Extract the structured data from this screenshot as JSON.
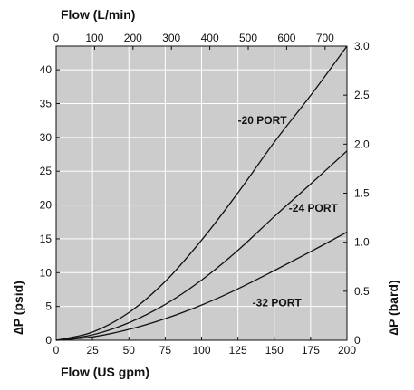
{
  "chart_data": {
    "type": "line",
    "title": "",
    "top_axis": {
      "label": "Flow (L/min)",
      "ticks": [
        0,
        100,
        200,
        300,
        400,
        500,
        600,
        700
      ],
      "range": [
        0,
        757
      ]
    },
    "bottom_axis": {
      "label": "Flow (US gpm)",
      "ticks": [
        0,
        25,
        50,
        75,
        100,
        125,
        150,
        175,
        200
      ],
      "range": [
        0,
        200
      ]
    },
    "left_axis": {
      "label": "∆P (psid)",
      "ticks": [
        0,
        5,
        10,
        15,
        20,
        25,
        30,
        35,
        40
      ],
      "range": [
        0,
        43.5
      ]
    },
    "right_axis": {
      "label": "∆P (bard)",
      "ticks": [
        "0",
        "0.5",
        "1.0",
        "1.5",
        "2.0",
        "2.5",
        "3.0"
      ],
      "range": [
        0,
        3.0
      ]
    },
    "grid": true,
    "x": [
      0,
      25,
      50,
      75,
      100,
      125,
      150,
      175,
      200
    ],
    "series": [
      {
        "name": "-20 PORT",
        "values": [
          0,
          1.2,
          4.1,
          8.7,
          14.8,
          21.8,
          29.3,
          36.2,
          43.5
        ]
      },
      {
        "name": "-24 PORT",
        "values": [
          0,
          0.8,
          2.6,
          5.3,
          8.9,
          13.3,
          18.3,
          23.1,
          28.0
        ]
      },
      {
        "name": "-32 PORT",
        "values": [
          0,
          0.5,
          1.6,
          3.2,
          5.2,
          7.6,
          10.3,
          13.1,
          16.0
        ]
      }
    ]
  }
}
